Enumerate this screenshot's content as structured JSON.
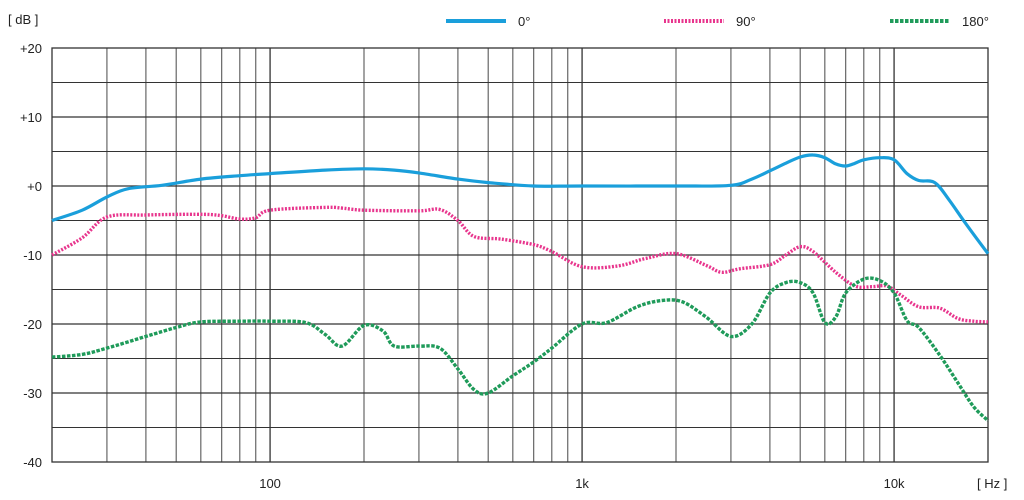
{
  "chart_data": {
    "type": "line",
    "title": "",
    "x_unit_label": "[ Hz ]",
    "y_unit_label": "[ dB ]",
    "x_scale": "log",
    "xlim": [
      20,
      20000
    ],
    "ylim": [
      -40,
      20
    ],
    "grid": true,
    "legend_position": "top-right",
    "x_tick_labels": [
      {
        "value": 100,
        "label": "100"
      },
      {
        "value": 1000,
        "label": "1k"
      },
      {
        "value": 10000,
        "label": "10k"
      }
    ],
    "y_ticks": [
      {
        "value": 20,
        "label": "+20"
      },
      {
        "value": 10,
        "label": "+10"
      },
      {
        "value": 0,
        "label": "+0"
      },
      {
        "value": -10,
        "label": "-10"
      },
      {
        "value": -20,
        "label": "-20"
      },
      {
        "value": -30,
        "label": "-30"
      },
      {
        "value": -40,
        "label": "-40"
      }
    ],
    "series": [
      {
        "name": "0°",
        "color": "#1a9fdb",
        "style": "solid",
        "points": [
          [
            20,
            -5
          ],
          [
            25,
            -3.5
          ],
          [
            30,
            -1.6
          ],
          [
            35,
            -0.4
          ],
          [
            45,
            0.1
          ],
          [
            60,
            1.0
          ],
          [
            80,
            1.5
          ],
          [
            100,
            1.8
          ],
          [
            150,
            2.3
          ],
          [
            200,
            2.5
          ],
          [
            250,
            2.3
          ],
          [
            300,
            1.9
          ],
          [
            400,
            1.0
          ],
          [
            500,
            0.5
          ],
          [
            700,
            0.0
          ],
          [
            1000,
            0.0
          ],
          [
            2000,
            0.0
          ],
          [
            3000,
            0.1
          ],
          [
            3500,
            1.0
          ],
          [
            4000,
            2.2
          ],
          [
            4500,
            3.3
          ],
          [
            5000,
            4.2
          ],
          [
            5500,
            4.5
          ],
          [
            6000,
            4.1
          ],
          [
            6500,
            3.2
          ],
          [
            7000,
            2.9
          ],
          [
            7500,
            3.3
          ],
          [
            8000,
            3.8
          ],
          [
            9000,
            4.1
          ],
          [
            10000,
            3.8
          ],
          [
            11000,
            1.8
          ],
          [
            12000,
            0.8
          ],
          [
            13500,
            0.5
          ],
          [
            15000,
            -2.0
          ],
          [
            17000,
            -5.5
          ],
          [
            20000,
            -9.8
          ]
        ]
      },
      {
        "name": "90°",
        "color": "#e8358d",
        "style": "dotted",
        "points": [
          [
            20,
            -10
          ],
          [
            25,
            -7.5
          ],
          [
            30,
            -4.5
          ],
          [
            40,
            -4.2
          ],
          [
            60,
            -4.1
          ],
          [
            70,
            -4.3
          ],
          [
            80,
            -4.8
          ],
          [
            90,
            -4.6
          ],
          [
            100,
            -3.5
          ],
          [
            150,
            -3.1
          ],
          [
            170,
            -3.2
          ],
          [
            200,
            -3.5
          ],
          [
            300,
            -3.6
          ],
          [
            350,
            -3.4
          ],
          [
            400,
            -5.0
          ],
          [
            450,
            -7.3
          ],
          [
            550,
            -7.7
          ],
          [
            700,
            -8.5
          ],
          [
            800,
            -9.5
          ],
          [
            1000,
            -11.7
          ],
          [
            1300,
            -11.6
          ],
          [
            1600,
            -10.5
          ],
          [
            2000,
            -9.8
          ],
          [
            2500,
            -11.5
          ],
          [
            2800,
            -12.5
          ],
          [
            3200,
            -12.0
          ],
          [
            4000,
            -11.4
          ],
          [
            4500,
            -10.0
          ],
          [
            5000,
            -8.8
          ],
          [
            5500,
            -9.5
          ],
          [
            6500,
            -12.5
          ],
          [
            7500,
            -14.5
          ],
          [
            8500,
            -14.6
          ],
          [
            9500,
            -14.5
          ],
          [
            10500,
            -15.8
          ],
          [
            12000,
            -17.5
          ],
          [
            14000,
            -17.7
          ],
          [
            16000,
            -19.2
          ],
          [
            18000,
            -19.6
          ],
          [
            20000,
            -19.7
          ]
        ]
      },
      {
        "name": "180°",
        "color": "#1f9b5a",
        "style": "dashed",
        "points": [
          [
            20,
            -24.8
          ],
          [
            25,
            -24.4
          ],
          [
            30,
            -23.5
          ],
          [
            40,
            -21.8
          ],
          [
            50,
            -20.5
          ],
          [
            60,
            -19.7
          ],
          [
            80,
            -19.6
          ],
          [
            100,
            -19.6
          ],
          [
            130,
            -19.8
          ],
          [
            150,
            -21.5
          ],
          [
            170,
            -23.2
          ],
          [
            200,
            -20.2
          ],
          [
            230,
            -21.0
          ],
          [
            250,
            -23.2
          ],
          [
            300,
            -23.2
          ],
          [
            350,
            -23.5
          ],
          [
            400,
            -26.5
          ],
          [
            450,
            -29.5
          ],
          [
            500,
            -30.0
          ],
          [
            600,
            -27.5
          ],
          [
            700,
            -25.5
          ],
          [
            800,
            -23.5
          ],
          [
            1000,
            -20.0
          ],
          [
            1200,
            -19.8
          ],
          [
            1500,
            -17.5
          ],
          [
            1800,
            -16.6
          ],
          [
            2100,
            -16.8
          ],
          [
            2500,
            -19.0
          ],
          [
            3000,
            -21.8
          ],
          [
            3500,
            -20.0
          ],
          [
            4000,
            -15.5
          ],
          [
            4500,
            -14.0
          ],
          [
            5000,
            -14.0
          ],
          [
            5500,
            -15.5
          ],
          [
            6000,
            -19.8
          ],
          [
            6500,
            -19.0
          ],
          [
            7000,
            -15.5
          ],
          [
            8000,
            -13.5
          ],
          [
            9000,
            -13.7
          ],
          [
            10000,
            -15.5
          ],
          [
            11000,
            -19.5
          ],
          [
            12000,
            -20.5
          ],
          [
            14000,
            -24.5
          ],
          [
            16000,
            -28.5
          ],
          [
            18000,
            -32.0
          ],
          [
            20000,
            -34.0
          ]
        ]
      }
    ]
  }
}
